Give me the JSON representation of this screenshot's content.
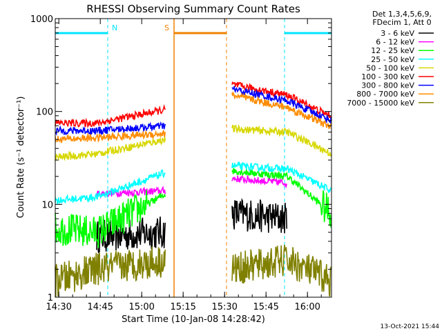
{
  "chart_data": {
    "type": "line",
    "title": "RHESSI Observing Summary Count Rates",
    "xlabel": "Start Time (10-Jan-08 14:28:42)",
    "ylabel": "Count Rate (s⁻¹ detector⁻¹)",
    "yscale": "log",
    "ylim": [
      1,
      1000
    ],
    "xlim_minutes": [
      0,
      100
    ],
    "x_ticks": [
      "14:30",
      "14:45",
      "15:00",
      "15:15",
      "15:30",
      "15:45",
      "16:00"
    ],
    "y_ticks": [
      "1",
      "10",
      "100",
      "1000"
    ],
    "legend_header": [
      "Det 1,3,4,5,6,9,",
      "FDecim 1, Att 0"
    ],
    "legend_position": "right",
    "timestamp": "13-Oct-2021 15:44",
    "markers": [
      {
        "label": "N",
        "color": "#00e5ff",
        "bar_minutes": [
          0,
          19
        ],
        "line_minutes": 19
      },
      {
        "label": "S",
        "color": "#f08000",
        "bar_minutes": [
          43,
          62
        ],
        "line_minutes": 62
      },
      {
        "label": "",
        "color": "#00e5ff",
        "bar_minutes": [
          83,
          100
        ],
        "line_minutes": 83
      }
    ],
    "series": [
      {
        "name": "3 - 6 keV",
        "color": "#000000",
        "seg1": [
          [
            15,
            4.5
          ],
          [
            40,
            5
          ]
        ],
        "seg2": [
          [
            64,
            8
          ],
          [
            84,
            7
          ]
        ]
      },
      {
        "name": "6 - 12 keV",
        "color": "#ff00ff",
        "seg1": [
          [
            15,
            13
          ],
          [
            40,
            14
          ]
        ],
        "seg2": [
          [
            64,
            19
          ],
          [
            84,
            17
          ]
        ]
      },
      {
        "name": "12 - 25 keV",
        "color": "#00ff00",
        "seg1": [
          [
            0,
            5.5
          ],
          [
            15,
            5
          ],
          [
            40,
            13
          ]
        ],
        "seg2": [
          [
            64,
            23
          ],
          [
            84,
            20
          ],
          [
            100,
            8
          ]
        ]
      },
      {
        "name": "25 - 50 keV",
        "color": "#00ffff",
        "seg1": [
          [
            0,
            11
          ],
          [
            15,
            12
          ],
          [
            40,
            22
          ]
        ],
        "seg2": [
          [
            64,
            26
          ],
          [
            84,
            24
          ],
          [
            100,
            14
          ]
        ]
      },
      {
        "name": "50 - 100 keV",
        "color": "#d7d700",
        "seg1": [
          [
            0,
            32
          ],
          [
            15,
            35
          ],
          [
            40,
            50
          ]
        ],
        "seg2": [
          [
            64,
            65
          ],
          [
            84,
            60
          ],
          [
            100,
            35
          ]
        ]
      },
      {
        "name": "100 - 300 keV",
        "color": "#ff0000",
        "seg1": [
          [
            0,
            75
          ],
          [
            15,
            75
          ],
          [
            40,
            105
          ]
        ],
        "seg2": [
          [
            64,
            195
          ],
          [
            84,
            150
          ],
          [
            100,
            88
          ]
        ]
      },
      {
        "name": "300 - 800 keV",
        "color": "#0000ff",
        "seg1": [
          [
            0,
            62
          ],
          [
            15,
            62
          ],
          [
            40,
            70
          ]
        ],
        "seg2": [
          [
            64,
            175
          ],
          [
            84,
            130
          ],
          [
            100,
            80
          ]
        ]
      },
      {
        "name": "800 - 7000 keV",
        "color": "#ff8c00",
        "seg1": [
          [
            0,
            50
          ],
          [
            15,
            52
          ],
          [
            40,
            58
          ]
        ],
        "seg2": [
          [
            64,
            150
          ],
          [
            84,
            110
          ],
          [
            100,
            68
          ]
        ]
      },
      {
        "name": "7000 - 15000 keV",
        "color": "#808000",
        "seg1": [
          [
            0,
            1.5
          ],
          [
            15,
            2
          ],
          [
            40,
            2.5
          ]
        ],
        "seg2": [
          [
            64,
            2
          ],
          [
            84,
            2.5
          ],
          [
            100,
            1.5
          ]
        ]
      }
    ]
  }
}
